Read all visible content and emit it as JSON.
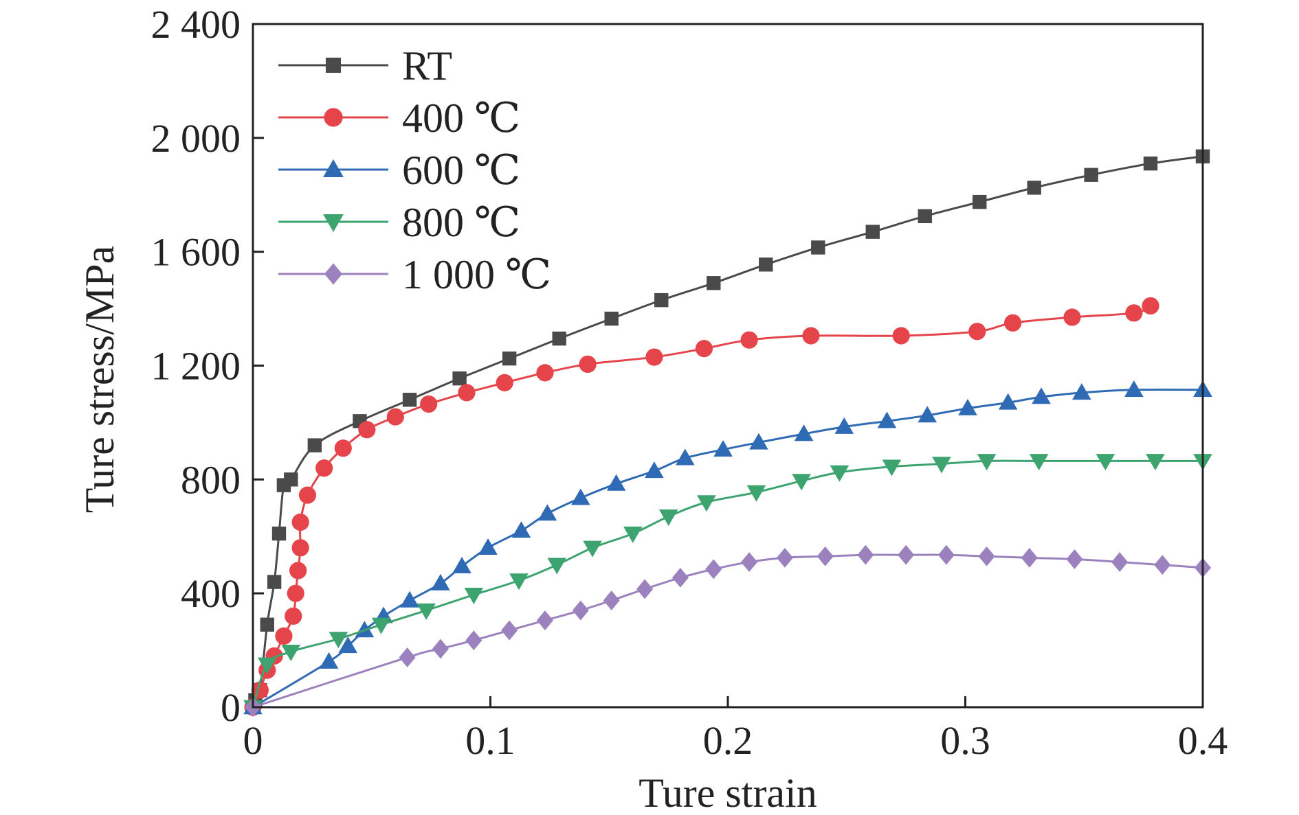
{
  "chart_data": {
    "type": "line",
    "xlabel": "Ture strain",
    "ylabel": "Ture stress/MPa",
    "xlim": [
      0,
      0.4
    ],
    "ylim": [
      0,
      2400
    ],
    "x_ticks": [
      0,
      0.1,
      0.2,
      0.3,
      0.4
    ],
    "x_tick_labels": [
      "0",
      "0.1",
      "0.2",
      "0.3",
      "0.4"
    ],
    "y_ticks": [
      0,
      400,
      800,
      1200,
      1600,
      2000,
      2400
    ],
    "y_tick_labels": [
      "0",
      "400",
      "800",
      "1 200",
      "1 600",
      "2 000",
      "2 400"
    ],
    "legend_position": "top-left",
    "grid": false,
    "series": [
      {
        "name": "RT",
        "color": "#4a4a4a",
        "marker": "square",
        "x": [
          0,
          0.001,
          0.003,
          0.006,
          0.009,
          0.011,
          0.013,
          0.016,
          0.026,
          0.045,
          0.066,
          0.087,
          0.108,
          0.129,
          0.151,
          0.172,
          0.194,
          0.216,
          0.238,
          0.261,
          0.283,
          0.306,
          0.329,
          0.353,
          0.378,
          0.4
        ],
        "y": [
          0,
          25,
          60,
          290,
          440,
          610,
          780,
          800,
          920,
          1005,
          1080,
          1155,
          1225,
          1295,
          1365,
          1430,
          1490,
          1555,
          1615,
          1670,
          1725,
          1775,
          1825,
          1870,
          1910,
          1935
        ]
      },
      {
        "name": "400 ℃",
        "color": "#e5454a",
        "marker": "circle",
        "x": [
          0,
          0.003,
          0.006,
          0.009,
          0.013,
          0.017,
          0.018,
          0.019,
          0.02,
          0.02,
          0.023,
          0.03,
          0.038,
          0.048,
          0.06,
          0.074,
          0.09,
          0.106,
          0.123,
          0.141,
          0.169,
          0.19,
          0.209,
          0.235,
          0.273,
          0.305,
          0.32,
          0.345,
          0.371,
          0.378
        ],
        "y": [
          0,
          60,
          130,
          180,
          250,
          320,
          400,
          480,
          560,
          650,
          745,
          840,
          910,
          975,
          1020,
          1065,
          1105,
          1140,
          1175,
          1205,
          1230,
          1260,
          1290,
          1305,
          1305,
          1320,
          1350,
          1370,
          1385,
          1410
        ]
      },
      {
        "name": "600 ℃",
        "color": "#2f6bb5",
        "marker": "triangle-up",
        "x": [
          0,
          0.032,
          0.04,
          0.047,
          0.055,
          0.066,
          0.079,
          0.088,
          0.099,
          0.113,
          0.124,
          0.138,
          0.153,
          0.169,
          0.182,
          0.198,
          0.213,
          0.232,
          0.249,
          0.267,
          0.284,
          0.301,
          0.318,
          0.332,
          0.349,
          0.371,
          0.4
        ],
        "y": [
          0,
          160,
          215,
          270,
          320,
          375,
          435,
          495,
          560,
          620,
          680,
          735,
          785,
          830,
          875,
          905,
          930,
          960,
          985,
          1005,
          1025,
          1050,
          1070,
          1090,
          1105,
          1115,
          1115
        ]
      },
      {
        "name": "800 ℃",
        "color": "#3da36f",
        "marker": "triangle-down",
        "x": [
          0,
          0.006,
          0.016,
          0.036,
          0.054,
          0.073,
          0.093,
          0.112,
          0.128,
          0.143,
          0.16,
          0.175,
          0.191,
          0.212,
          0.231,
          0.247,
          0.269,
          0.29,
          0.309,
          0.331,
          0.359,
          0.38,
          0.4
        ],
        "y": [
          0,
          150,
          195,
          240,
          290,
          340,
          395,
          445,
          500,
          560,
          610,
          670,
          720,
          755,
          795,
          825,
          845,
          855,
          865,
          865,
          865,
          865,
          865
        ]
      },
      {
        "name": "1 000 ℃",
        "color": "#9b82be",
        "marker": "diamond",
        "x": [
          0,
          0.065,
          0.079,
          0.093,
          0.108,
          0.123,
          0.138,
          0.151,
          0.165,
          0.18,
          0.194,
          0.209,
          0.224,
          0.241,
          0.258,
          0.275,
          0.292,
          0.309,
          0.327,
          0.346,
          0.365,
          0.383,
          0.4
        ],
        "y": [
          0,
          175,
          205,
          235,
          270,
          305,
          340,
          375,
          415,
          455,
          485,
          510,
          525,
          530,
          535,
          535,
          535,
          530,
          525,
          520,
          510,
          500,
          490
        ]
      }
    ]
  }
}
